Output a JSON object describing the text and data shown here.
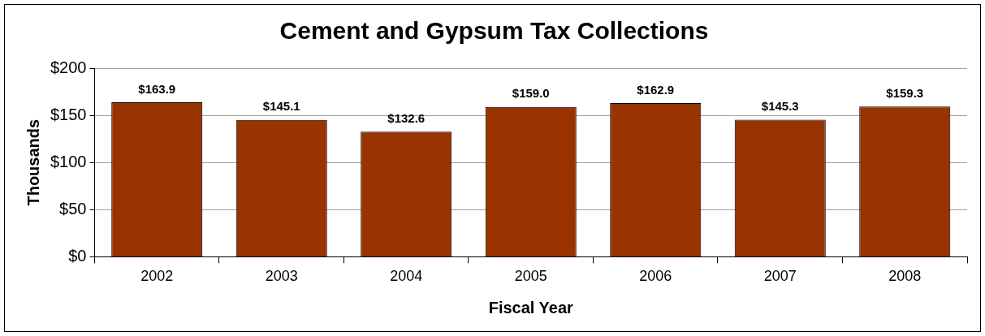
{
  "chart_data": {
    "type": "bar",
    "title": "Cement and Gypsum Tax Collections",
    "xlabel": "Fiscal Year",
    "ylabel": "Thousands",
    "categories": [
      "2002",
      "2003",
      "2004",
      "2005",
      "2006",
      "2007",
      "2008"
    ],
    "values": [
      163.9,
      145.1,
      132.6,
      159.0,
      162.9,
      145.3,
      159.3
    ],
    "value_labels": [
      "$163.9",
      "$145.1",
      "$132.6",
      "$159.0",
      "$162.9",
      "$145.3",
      "$159.3"
    ],
    "color": "#993300",
    "ylim": [
      0,
      200
    ],
    "yticks": [
      {
        "value": 0,
        "label": "$0"
      },
      {
        "value": 50,
        "label": "$50"
      },
      {
        "value": 100,
        "label": "$100"
      },
      {
        "value": 150,
        "label": "$150"
      },
      {
        "value": 200,
        "label": "$200"
      }
    ],
    "grid": "y"
  }
}
